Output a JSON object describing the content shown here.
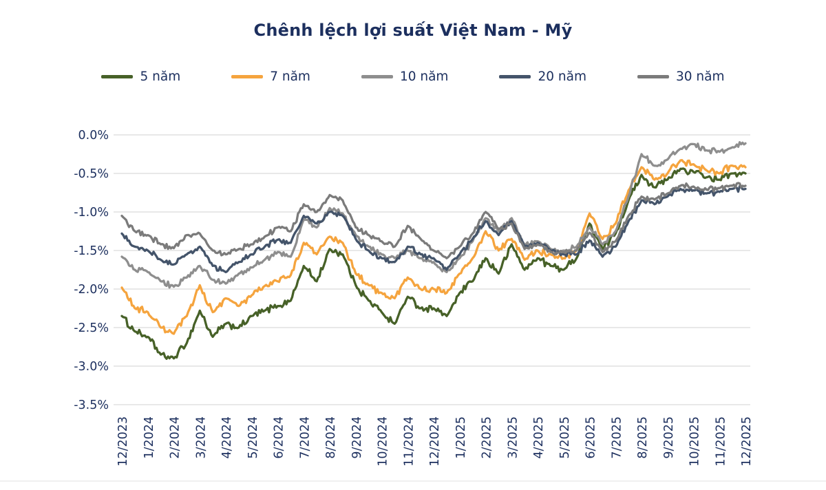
{
  "title": "Chênh lệch lợi suất Việt Nam - Mỹ",
  "colors": {
    "text": "#1c2f5e",
    "gridline": "#d9d9d9",
    "background": "#ffffff",
    "bottom_edge_line": "#ececec"
  },
  "chart_data": {
    "type": "line",
    "title": "Chênh lệch lợi suất Việt Nam - Mỹ",
    "xlabel": "",
    "ylabel": "",
    "y_unit": "%",
    "ylim": [
      -3.5,
      0.0
    ],
    "grid": "horizontal",
    "legend_position": "top",
    "y_tick_labels": [
      "0.0%",
      "-0.5%",
      "-1.0%",
      "-1.5%",
      "-2.0%",
      "-2.5%",
      "-3.0%",
      "-3.5%"
    ],
    "x_tick_labels": [
      "12/2023",
      "1/2024",
      "2/2024",
      "3/2024",
      "4/2024",
      "5/2024",
      "6/2024",
      "7/2024",
      "8/2024",
      "9/2024",
      "10/2024",
      "11/2024",
      "12/2024",
      "1/2025",
      "2/2025",
      "3/2025",
      "4/2025",
      "5/2025",
      "6/2025",
      "7/2025",
      "8/2025",
      "9/2025",
      "10/2025",
      "11/2025",
      "12/2025"
    ],
    "sampling": "two points per month, 12/2023 through 12/2025 (49 samples per series), values in percent",
    "series": [
      {
        "name": "5 năm",
        "color": "#476128",
        "values": [
          -2.35,
          -2.55,
          -2.62,
          -2.85,
          -2.9,
          -2.7,
          -2.28,
          -2.62,
          -2.45,
          -2.5,
          -2.35,
          -2.28,
          -2.22,
          -2.15,
          -1.7,
          -1.9,
          -1.48,
          -1.55,
          -1.95,
          -2.15,
          -2.3,
          -2.45,
          -2.1,
          -2.25,
          -2.25,
          -2.35,
          -2.05,
          -1.9,
          -1.6,
          -1.8,
          -1.42,
          -1.75,
          -1.6,
          -1.7,
          -1.75,
          -1.6,
          -1.15,
          -1.48,
          -1.28,
          -0.85,
          -0.52,
          -0.68,
          -0.58,
          -0.44,
          -0.48,
          -0.55,
          -0.58,
          -0.5,
          -0.5
        ]
      },
      {
        "name": "7 năm",
        "color": "#f5a43e",
        "values": [
          -1.98,
          -2.25,
          -2.3,
          -2.5,
          -2.58,
          -2.35,
          -1.95,
          -2.3,
          -2.12,
          -2.22,
          -2.08,
          -1.96,
          -1.9,
          -1.82,
          -1.4,
          -1.55,
          -1.32,
          -1.4,
          -1.8,
          -1.95,
          -2.05,
          -2.12,
          -1.85,
          -2.0,
          -2.0,
          -2.05,
          -1.8,
          -1.6,
          -1.25,
          -1.5,
          -1.35,
          -1.62,
          -1.5,
          -1.55,
          -1.6,
          -1.5,
          -1.02,
          -1.35,
          -1.15,
          -0.72,
          -0.42,
          -0.58,
          -0.5,
          -0.33,
          -0.38,
          -0.46,
          -0.5,
          -0.4,
          -0.42
        ]
      },
      {
        "name": "10 năm",
        "color": "#8e8e8e",
        "values": [
          -1.58,
          -1.75,
          -1.78,
          -1.9,
          -1.97,
          -1.85,
          -1.7,
          -1.88,
          -1.93,
          -1.8,
          -1.72,
          -1.62,
          -1.52,
          -1.58,
          -1.1,
          -1.2,
          -0.95,
          -1.02,
          -1.3,
          -1.45,
          -1.55,
          -1.6,
          -1.5,
          -1.6,
          -1.65,
          -1.78,
          -1.6,
          -1.38,
          -1.08,
          -1.25,
          -1.08,
          -1.42,
          -1.38,
          -1.48,
          -1.5,
          -1.45,
          -1.2,
          -1.42,
          -1.25,
          -0.8,
          -0.25,
          -0.4,
          -0.32,
          -0.18,
          -0.12,
          -0.2,
          -0.22,
          -0.16,
          -0.11
        ]
      },
      {
        "name": "20 năm",
        "color": "#44546a",
        "values": [
          -1.28,
          -1.45,
          -1.5,
          -1.62,
          -1.68,
          -1.55,
          -1.45,
          -1.7,
          -1.78,
          -1.65,
          -1.55,
          -1.45,
          -1.36,
          -1.4,
          -1.05,
          -1.15,
          -1.0,
          -1.05,
          -1.35,
          -1.5,
          -1.6,
          -1.65,
          -1.45,
          -1.55,
          -1.6,
          -1.75,
          -1.55,
          -1.35,
          -1.12,
          -1.3,
          -1.12,
          -1.45,
          -1.4,
          -1.5,
          -1.55,
          -1.55,
          -1.37,
          -1.58,
          -1.45,
          -1.12,
          -0.85,
          -0.9,
          -0.8,
          -0.7,
          -0.72,
          -0.76,
          -0.74,
          -0.7,
          -0.7
        ]
      },
      {
        "name": "30 năm",
        "color": "#7b7b7b",
        "values": [
          -1.05,
          -1.25,
          -1.3,
          -1.42,
          -1.47,
          -1.3,
          -1.28,
          -1.5,
          -1.55,
          -1.48,
          -1.42,
          -1.32,
          -1.2,
          -1.25,
          -0.9,
          -1.0,
          -0.78,
          -0.85,
          -1.2,
          -1.3,
          -1.38,
          -1.45,
          -1.18,
          -1.35,
          -1.5,
          -1.6,
          -1.45,
          -1.28,
          -1.0,
          -1.22,
          -1.15,
          -1.48,
          -1.42,
          -1.52,
          -1.52,
          -1.5,
          -1.27,
          -1.52,
          -1.38,
          -1.05,
          -0.8,
          -0.84,
          -0.76,
          -0.66,
          -0.67,
          -0.71,
          -0.69,
          -0.66,
          -0.66
        ]
      }
    ]
  }
}
